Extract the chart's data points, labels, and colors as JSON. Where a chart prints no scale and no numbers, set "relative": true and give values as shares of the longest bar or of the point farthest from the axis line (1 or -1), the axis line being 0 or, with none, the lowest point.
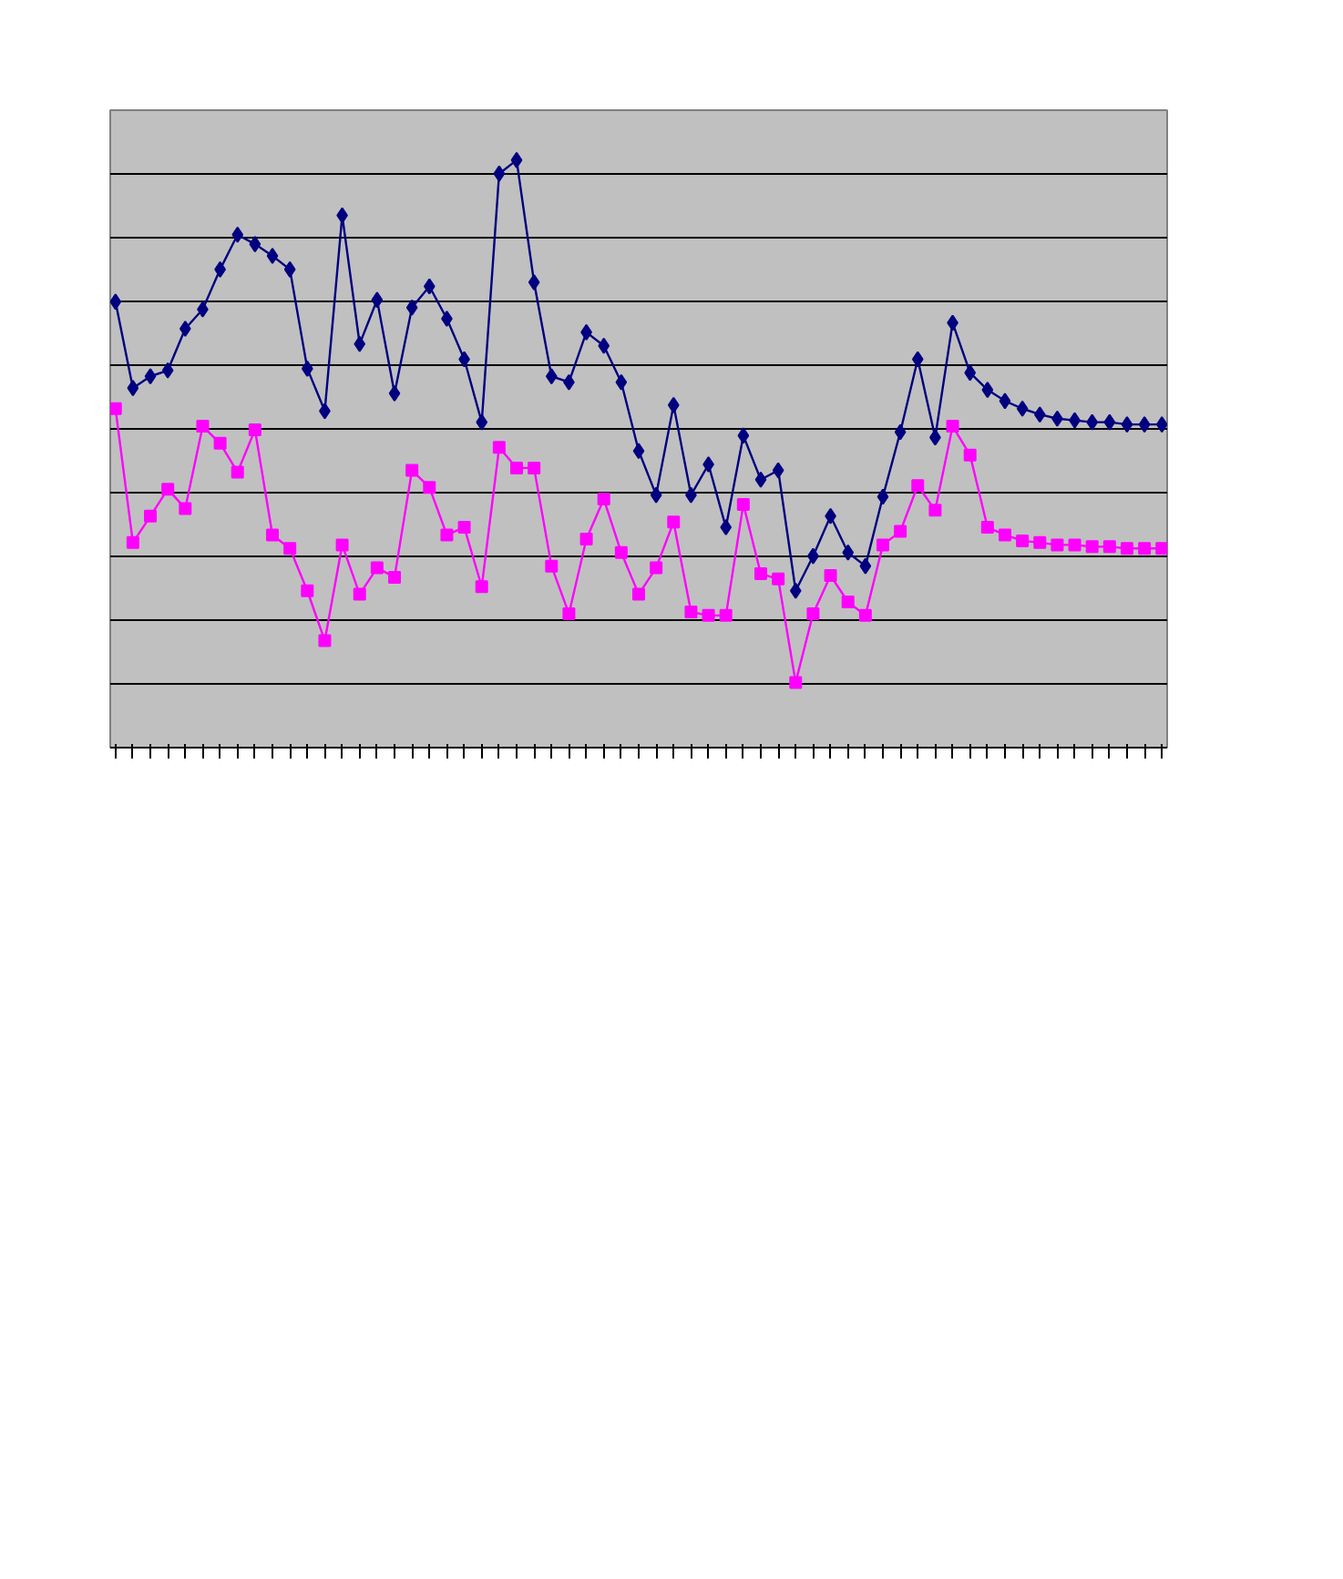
{
  "chart_data": {
    "type": "line",
    "relative": true,
    "grid": "y",
    "categories": [
      null,
      null,
      null,
      null,
      null,
      null,
      null,
      null,
      null,
      null,
      null,
      null,
      null,
      null,
      null,
      null,
      null,
      null,
      null,
      null,
      null,
      null,
      null,
      null,
      null,
      null,
      null,
      null,
      null,
      null,
      null,
      null,
      null,
      null,
      null,
      null,
      null,
      null,
      null,
      null,
      null,
      null,
      null,
      null,
      null,
      null,
      null,
      null,
      null,
      null,
      null,
      null,
      null,
      null,
      null,
      null,
      null,
      null,
      null,
      null,
      null
    ],
    "series": [
      {
        "color": "#000080",
        "marker": "diamond",
        "values": [
          0.759,
          0.612,
          0.632,
          0.642,
          0.713,
          0.746,
          0.814,
          0.873,
          0.857,
          0.837,
          0.814,
          0.645,
          0.573,
          0.906,
          0.687,
          0.762,
          0.603,
          0.749,
          0.785,
          0.73,
          0.661,
          0.554,
          0.977,
          1,
          0.792,
          0.632,
          0.622,
          0.707,
          0.684,
          0.622,
          0.505,
          0.43,
          0.583,
          0.43,
          0.482,
          0.375,
          0.531,
          0.456,
          0.472,
          0.267,
          0.326,
          0.394,
          0.332,
          0.309,
          0.427,
          0.537,
          0.661,
          0.528,
          0.723,
          0.638,
          0.609,
          0.59,
          0.577,
          0.567,
          0.56,
          0.557,
          0.554,
          0.554,
          0.55,
          0.55,
          0.55
        ]
      },
      {
        "color": "#ff00ff",
        "marker": "square",
        "values": [
          0.577,
          0.349,
          0.394,
          0.44,
          0.407,
          0.547,
          0.518,
          0.469,
          0.541,
          0.362,
          0.339,
          0.267,
          0.182,
          0.345,
          0.261,
          0.306,
          0.29,
          0.472,
          0.443,
          0.362,
          0.375,
          0.274,
          0.511,
          0.476,
          0.476,
          0.309,
          0.228,
          0.355,
          0.423,
          0.332,
          0.261,
          0.306,
          0.384,
          0.231,
          0.225,
          0.225,
          0.414,
          0.296,
          0.287,
          0.111,
          0.228,
          0.293,
          0.248,
          0.225,
          0.345,
          0.368,
          0.446,
          0.404,
          0.547,
          0.498,
          0.375,
          0.362,
          0.352,
          0.349,
          0.345,
          0.345,
          0.342,
          0.342,
          0.339,
          0.339,
          0.339
        ]
      }
    ]
  }
}
